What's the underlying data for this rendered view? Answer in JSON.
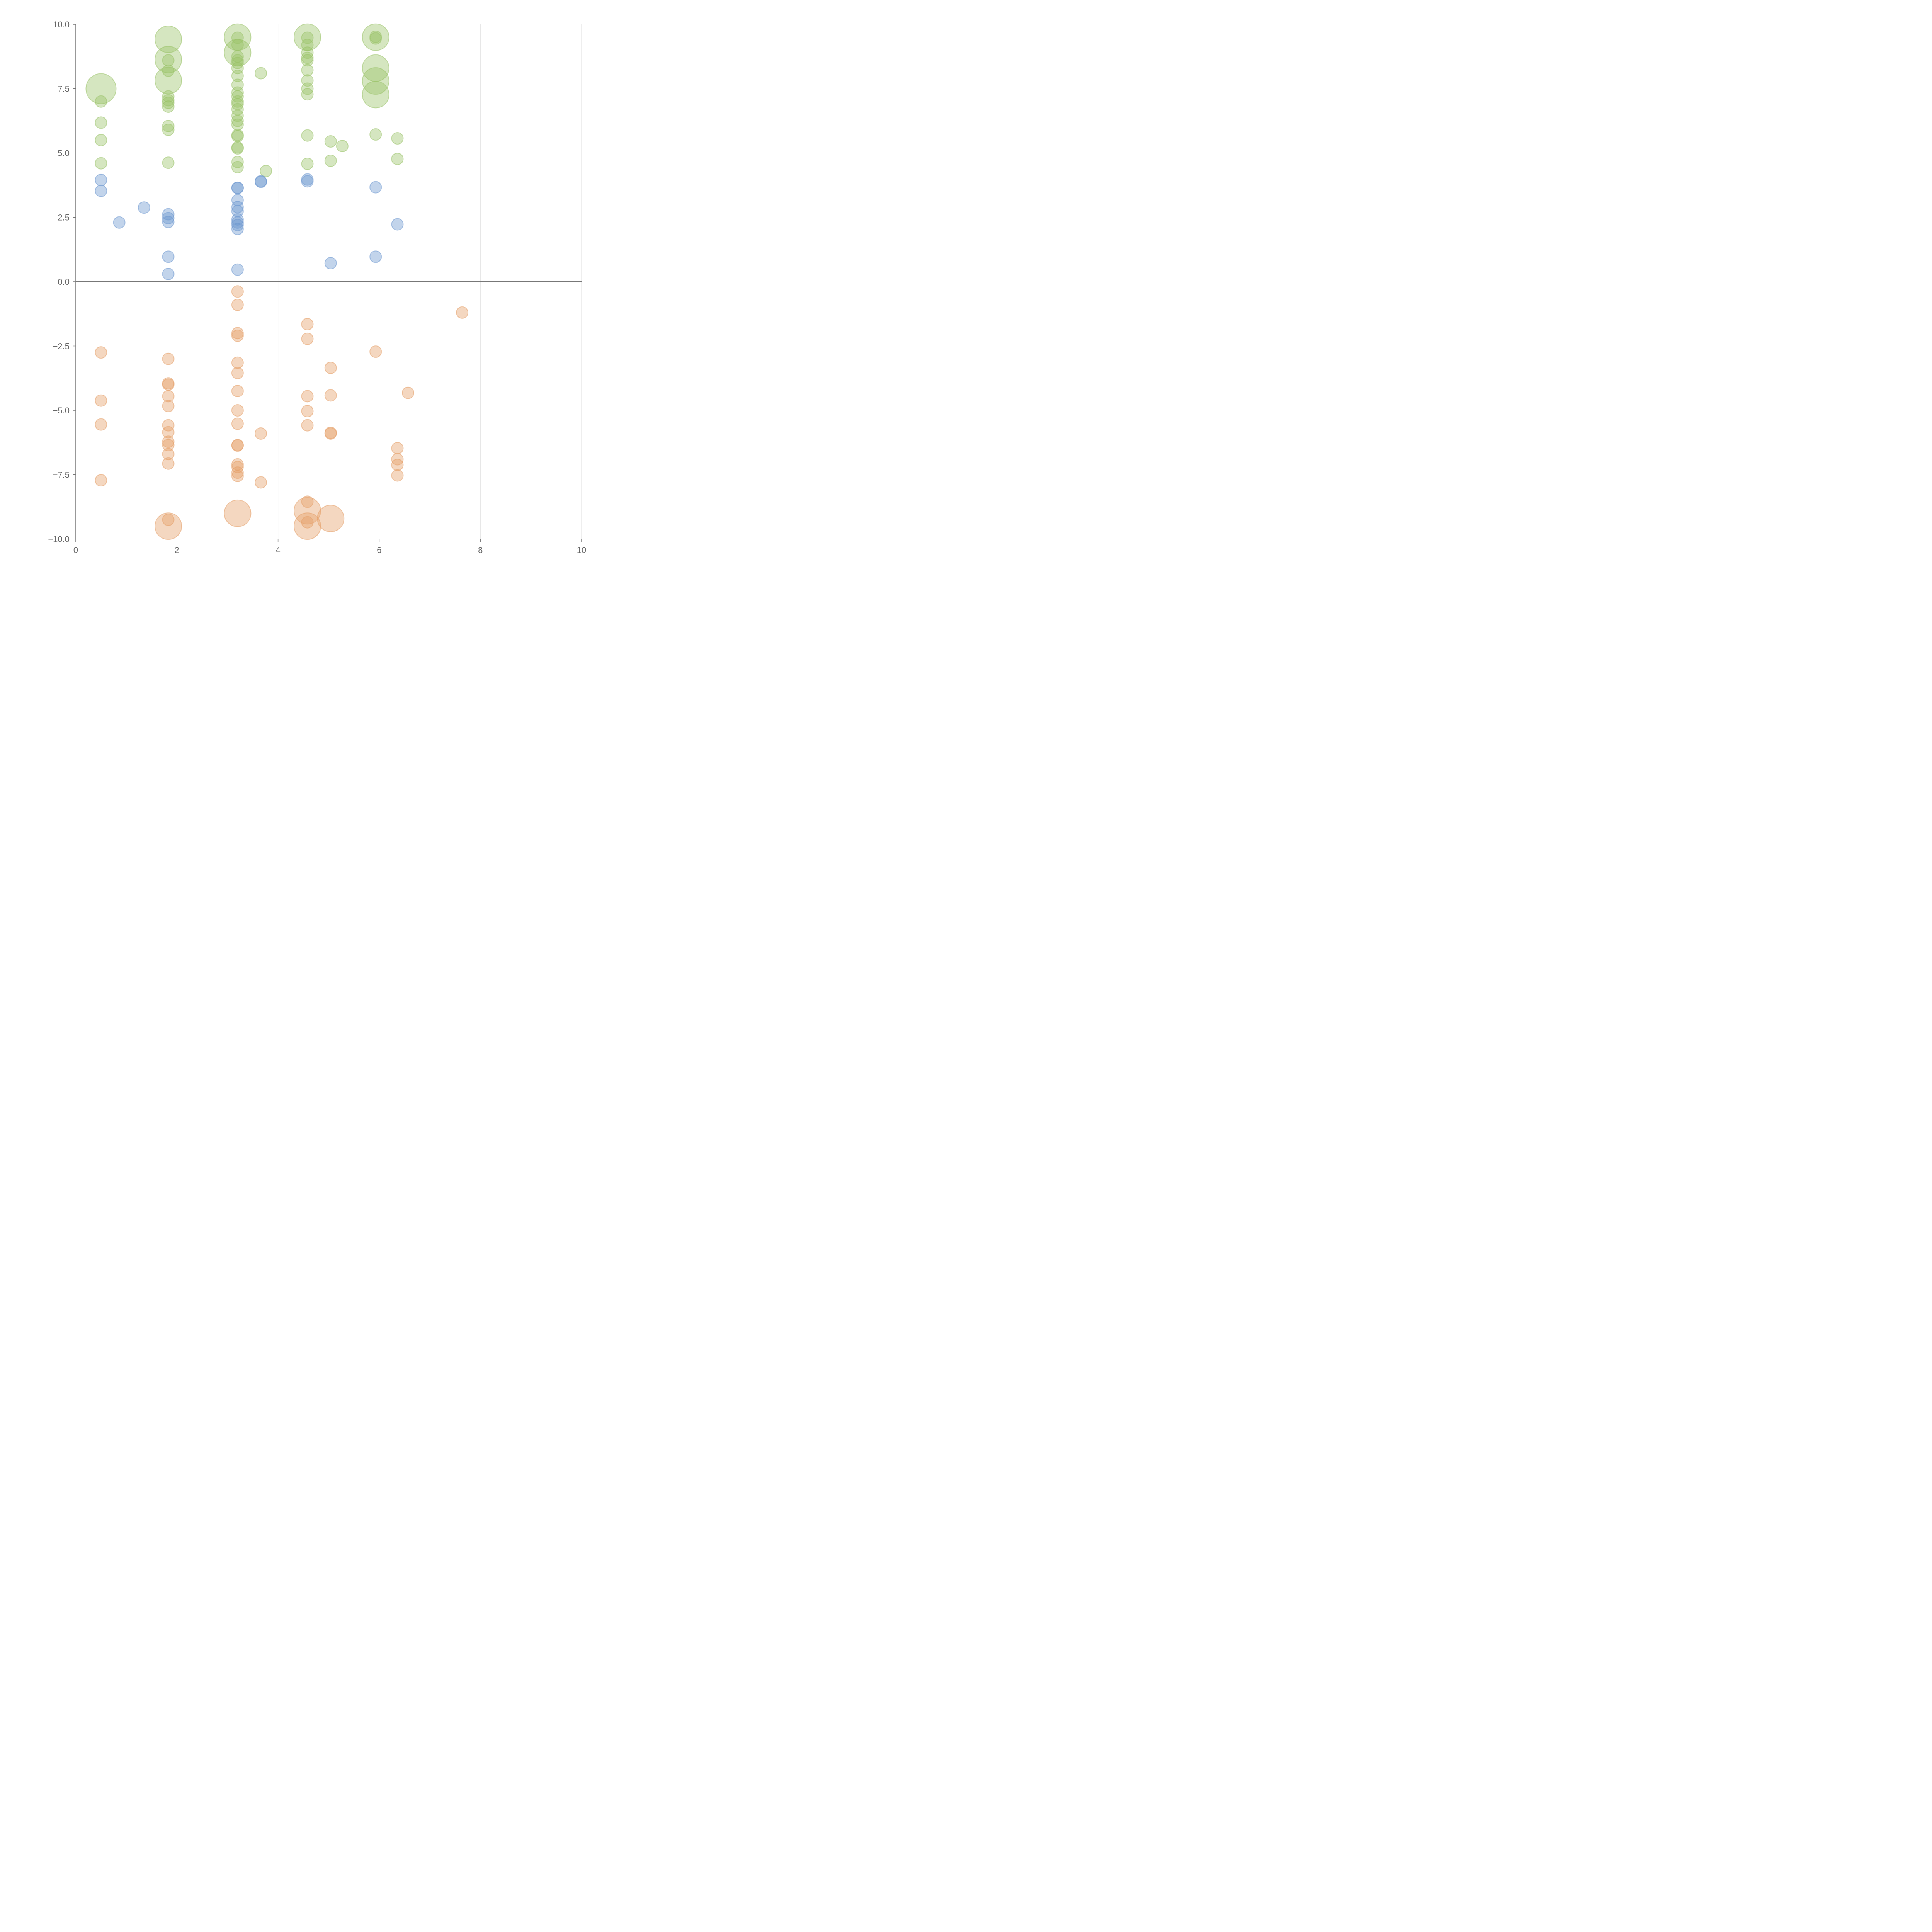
{
  "chart_data": {
    "type": "scatter",
    "title": "",
    "xlabel": "",
    "ylabel": "",
    "xlim": [
      0,
      10
    ],
    "ylim": [
      -10,
      10
    ],
    "xticks": [
      "0",
      "2",
      "4",
      "6",
      "8",
      "10"
    ],
    "yticks": [
      "10.0",
      "7.5",
      "5.0",
      "2.5",
      "0.0",
      "−2.5",
      "−5.0",
      "−7.5",
      "−10.0"
    ],
    "xgrid": true,
    "ygrid": false,
    "legend": "none",
    "series": [
      {
        "name": "green",
        "color": "#9ac36a",
        "points": [
          {
            "x": 0.5,
            "y": 7.5,
            "r": 2.6
          },
          {
            "x": 0.5,
            "y": 7.0,
            "r": 1
          },
          {
            "x": 0.5,
            "y": 6.18,
            "r": 1
          },
          {
            "x": 0.5,
            "y": 5.5,
            "r": 1
          },
          {
            "x": 0.5,
            "y": 4.6,
            "r": 1
          },
          {
            "x": 1.83,
            "y": 9.42,
            "r": 2.3
          },
          {
            "x": 1.83,
            "y": 8.63,
            "r": 2.3
          },
          {
            "x": 1.83,
            "y": 7.82,
            "r": 2.3
          },
          {
            "x": 1.83,
            "y": 8.6,
            "r": 1
          },
          {
            "x": 1.83,
            "y": 8.2,
            "r": 1
          },
          {
            "x": 1.83,
            "y": 7.2,
            "r": 1
          },
          {
            "x": 1.83,
            "y": 7.05,
            "r": 1
          },
          {
            "x": 1.83,
            "y": 6.95,
            "r": 1
          },
          {
            "x": 1.83,
            "y": 6.8,
            "r": 1
          },
          {
            "x": 1.83,
            "y": 6.05,
            "r": 1
          },
          {
            "x": 1.83,
            "y": 5.9,
            "r": 1
          },
          {
            "x": 1.83,
            "y": 4.62,
            "r": 1
          },
          {
            "x": 3.2,
            "y": 9.5,
            "r": 2.3
          },
          {
            "x": 3.2,
            "y": 8.9,
            "r": 2.3
          },
          {
            "x": 3.2,
            "y": 9.48,
            "r": 1
          },
          {
            "x": 3.2,
            "y": 9.2,
            "r": 1
          },
          {
            "x": 3.2,
            "y": 8.75,
            "r": 1
          },
          {
            "x": 3.2,
            "y": 8.6,
            "r": 1
          },
          {
            "x": 3.2,
            "y": 8.5,
            "r": 1
          },
          {
            "x": 3.2,
            "y": 8.3,
            "r": 1
          },
          {
            "x": 3.2,
            "y": 8.0,
            "r": 1
          },
          {
            "x": 3.2,
            "y": 7.65,
            "r": 1
          },
          {
            "x": 3.2,
            "y": 7.35,
            "r": 1
          },
          {
            "x": 3.2,
            "y": 7.2,
            "r": 1
          },
          {
            "x": 3.2,
            "y": 7.0,
            "r": 1
          },
          {
            "x": 3.2,
            "y": 6.9,
            "r": 1
          },
          {
            "x": 3.2,
            "y": 6.7,
            "r": 1
          },
          {
            "x": 3.2,
            "y": 6.45,
            "r": 1
          },
          {
            "x": 3.2,
            "y": 6.25,
            "r": 1
          },
          {
            "x": 3.2,
            "y": 6.1,
            "r": 1
          },
          {
            "x": 3.2,
            "y": 5.7,
            "r": 1
          },
          {
            "x": 3.2,
            "y": 5.65,
            "r": 1
          },
          {
            "x": 3.2,
            "y": 5.22,
            "r": 1
          },
          {
            "x": 3.2,
            "y": 5.18,
            "r": 1
          },
          {
            "x": 3.2,
            "y": 4.65,
            "r": 1
          },
          {
            "x": 3.2,
            "y": 4.45,
            "r": 1
          },
          {
            "x": 3.66,
            "y": 8.1,
            "r": 1
          },
          {
            "x": 3.76,
            "y": 4.3,
            "r": 1
          },
          {
            "x": 4.58,
            "y": 9.5,
            "r": 2.3
          },
          {
            "x": 4.58,
            "y": 9.48,
            "r": 1
          },
          {
            "x": 4.58,
            "y": 9.2,
            "r": 1
          },
          {
            "x": 4.58,
            "y": 8.9,
            "r": 1
          },
          {
            "x": 4.58,
            "y": 8.7,
            "r": 1
          },
          {
            "x": 4.58,
            "y": 8.6,
            "r": 1
          },
          {
            "x": 4.58,
            "y": 8.22,
            "r": 1
          },
          {
            "x": 4.58,
            "y": 7.82,
            "r": 1
          },
          {
            "x": 4.58,
            "y": 7.5,
            "r": 1
          },
          {
            "x": 4.58,
            "y": 7.28,
            "r": 1
          },
          {
            "x": 4.58,
            "y": 5.68,
            "r": 1
          },
          {
            "x": 4.58,
            "y": 4.58,
            "r": 1
          },
          {
            "x": 5.04,
            "y": 5.45,
            "r": 1
          },
          {
            "x": 5.04,
            "y": 4.7,
            "r": 1
          },
          {
            "x": 5.27,
            "y": 5.27,
            "r": 1
          },
          {
            "x": 5.93,
            "y": 9.5,
            "r": 2.3
          },
          {
            "x": 5.93,
            "y": 8.3,
            "r": 2.3
          },
          {
            "x": 5.93,
            "y": 7.8,
            "r": 2.3
          },
          {
            "x": 5.93,
            "y": 7.27,
            "r": 2.3
          },
          {
            "x": 5.93,
            "y": 9.52,
            "r": 1
          },
          {
            "x": 5.93,
            "y": 9.45,
            "r": 1
          },
          {
            "x": 5.93,
            "y": 5.72,
            "r": 1
          },
          {
            "x": 6.36,
            "y": 5.57,
            "r": 1
          },
          {
            "x": 6.36,
            "y": 4.77,
            "r": 1
          }
        ]
      },
      {
        "name": "blue",
        "color": "#6d98cf",
        "points": [
          {
            "x": 0.5,
            "y": 3.95,
            "r": 1
          },
          {
            "x": 0.5,
            "y": 3.53,
            "r": 1
          },
          {
            "x": 0.86,
            "y": 2.3,
            "r": 1
          },
          {
            "x": 1.35,
            "y": 2.88,
            "r": 1
          },
          {
            "x": 1.83,
            "y": 2.62,
            "r": 1
          },
          {
            "x": 1.83,
            "y": 2.47,
            "r": 1
          },
          {
            "x": 1.83,
            "y": 2.32,
            "r": 1
          },
          {
            "x": 1.83,
            "y": 0.97,
            "r": 1
          },
          {
            "x": 1.83,
            "y": 0.3,
            "r": 1
          },
          {
            "x": 3.2,
            "y": 3.65,
            "r": 1
          },
          {
            "x": 3.2,
            "y": 3.64,
            "r": 1
          },
          {
            "x": 3.2,
            "y": 3.17,
            "r": 1
          },
          {
            "x": 3.2,
            "y": 2.9,
            "r": 1
          },
          {
            "x": 3.2,
            "y": 2.74,
            "r": 1
          },
          {
            "x": 3.2,
            "y": 2.42,
            "r": 1
          },
          {
            "x": 3.2,
            "y": 2.3,
            "r": 1
          },
          {
            "x": 3.2,
            "y": 2.2,
            "r": 1
          },
          {
            "x": 3.2,
            "y": 2.05,
            "r": 1
          },
          {
            "x": 3.2,
            "y": 0.47,
            "r": 1
          },
          {
            "x": 3.66,
            "y": 3.9,
            "r": 1
          },
          {
            "x": 3.66,
            "y": 3.88,
            "r": 1
          },
          {
            "x": 4.58,
            "y": 3.97,
            "r": 1
          },
          {
            "x": 4.58,
            "y": 3.9,
            "r": 1
          },
          {
            "x": 5.04,
            "y": 0.72,
            "r": 1
          },
          {
            "x": 5.93,
            "y": 3.67,
            "r": 1
          },
          {
            "x": 5.93,
            "y": 0.97,
            "r": 1
          },
          {
            "x": 6.36,
            "y": 2.23,
            "r": 1
          }
        ]
      },
      {
        "name": "orange",
        "color": "#e5a06a",
        "points": [
          {
            "x": 0.5,
            "y": -2.75,
            "r": 1
          },
          {
            "x": 0.5,
            "y": -4.62,
            "r": 1
          },
          {
            "x": 0.5,
            "y": -5.55,
            "r": 1
          },
          {
            "x": 0.5,
            "y": -7.72,
            "r": 1
          },
          {
            "x": 1.83,
            "y": -3.0,
            "r": 1
          },
          {
            "x": 1.83,
            "y": -3.95,
            "r": 1
          },
          {
            "x": 1.83,
            "y": -4.0,
            "r": 1
          },
          {
            "x": 1.83,
            "y": -4.45,
            "r": 1
          },
          {
            "x": 1.83,
            "y": -4.83,
            "r": 1
          },
          {
            "x": 1.83,
            "y": -5.58,
            "r": 1
          },
          {
            "x": 1.83,
            "y": -5.85,
            "r": 1
          },
          {
            "x": 1.83,
            "y": -6.22,
            "r": 1
          },
          {
            "x": 1.83,
            "y": -6.35,
            "r": 1
          },
          {
            "x": 1.83,
            "y": -6.7,
            "r": 1
          },
          {
            "x": 1.83,
            "y": -7.07,
            "r": 1
          },
          {
            "x": 1.83,
            "y": -9.25,
            "r": 1
          },
          {
            "x": 1.83,
            "y": -9.5,
            "r": 2.3
          },
          {
            "x": 3.2,
            "y": -0.38,
            "r": 1
          },
          {
            "x": 3.2,
            "y": -0.9,
            "r": 1
          },
          {
            "x": 3.2,
            "y": -2.0,
            "r": 1
          },
          {
            "x": 3.2,
            "y": -2.1,
            "r": 1
          },
          {
            "x": 3.2,
            "y": -3.15,
            "r": 1
          },
          {
            "x": 3.2,
            "y": -3.55,
            "r": 1
          },
          {
            "x": 3.2,
            "y": -4.25,
            "r": 1
          },
          {
            "x": 3.2,
            "y": -5.0,
            "r": 1
          },
          {
            "x": 3.2,
            "y": -5.52,
            "r": 1
          },
          {
            "x": 3.2,
            "y": -6.35,
            "r": 1
          },
          {
            "x": 3.2,
            "y": -6.37,
            "r": 1
          },
          {
            "x": 3.2,
            "y": -7.1,
            "r": 1
          },
          {
            "x": 3.2,
            "y": -7.2,
            "r": 1
          },
          {
            "x": 3.2,
            "y": -7.42,
            "r": 1
          },
          {
            "x": 3.2,
            "y": -7.55,
            "r": 1
          },
          {
            "x": 3.2,
            "y": -9.0,
            "r": 2.3
          },
          {
            "x": 3.66,
            "y": -5.9,
            "r": 1
          },
          {
            "x": 3.66,
            "y": -7.8,
            "r": 1
          },
          {
            "x": 4.58,
            "y": -1.65,
            "r": 1
          },
          {
            "x": 4.58,
            "y": -2.22,
            "r": 1
          },
          {
            "x": 4.58,
            "y": -4.45,
            "r": 1
          },
          {
            "x": 4.58,
            "y": -5.03,
            "r": 1
          },
          {
            "x": 4.58,
            "y": -5.58,
            "r": 1
          },
          {
            "x": 4.58,
            "y": -8.55,
            "r": 1
          },
          {
            "x": 4.58,
            "y": -9.35,
            "r": 1
          },
          {
            "x": 4.58,
            "y": -8.9,
            "r": 2.3
          },
          {
            "x": 4.58,
            "y": -9.5,
            "r": 2.3
          },
          {
            "x": 5.04,
            "y": -3.35,
            "r": 1
          },
          {
            "x": 5.04,
            "y": -4.42,
            "r": 1
          },
          {
            "x": 5.04,
            "y": -5.87,
            "r": 1
          },
          {
            "x": 5.04,
            "y": -5.9,
            "r": 1
          },
          {
            "x": 5.04,
            "y": -9.2,
            "r": 2.3
          },
          {
            "x": 5.93,
            "y": -2.72,
            "r": 1
          },
          {
            "x": 6.36,
            "y": -6.47,
            "r": 1
          },
          {
            "x": 6.36,
            "y": -6.9,
            "r": 1
          },
          {
            "x": 6.36,
            "y": -7.12,
            "r": 1
          },
          {
            "x": 6.36,
            "y": -7.53,
            "r": 1
          },
          {
            "x": 6.57,
            "y": -4.32,
            "r": 1
          },
          {
            "x": 7.64,
            "y": -1.2,
            "r": 1
          }
        ]
      }
    ]
  }
}
